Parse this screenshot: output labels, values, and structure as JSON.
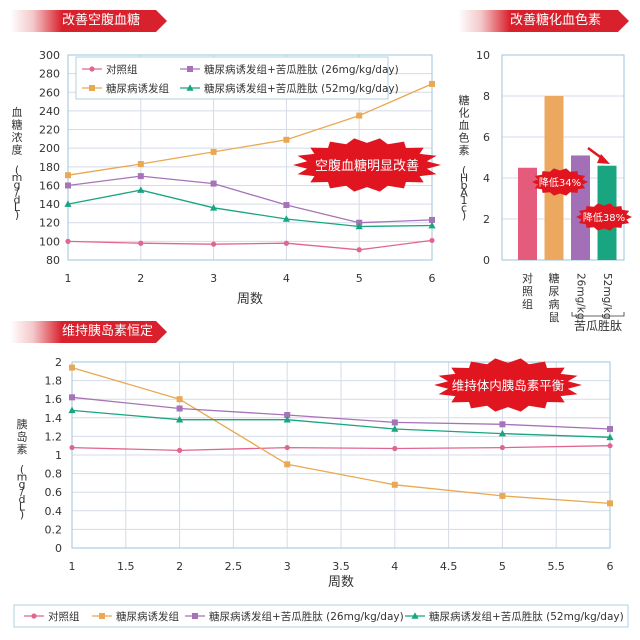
{
  "banners": {
    "fasting": "改善空腹血糖",
    "hba1c": "改善糖化血色素",
    "insulin": "维持胰岛素恒定"
  },
  "colors": {
    "control": "#e06690",
    "diabetic": "#e9a851",
    "low_dose": "#a673b8",
    "high_dose": "#19a57f",
    "grid": "#d5dbe8",
    "frame": "#9cc6dc",
    "axis_text": "#333333",
    "bar_control": "#e45b7c",
    "bar_diabetic": "#eda860",
    "bar_low": "#a36fb6",
    "bar_high": "#19a57f",
    "burst": "#e01520"
  },
  "legend_labels": {
    "control": "对照组",
    "diabetic": "糖尿病诱发组",
    "low_dose": "糖尿病诱发组+苦瓜胜肽 (26mg/kg/day)",
    "high_dose": "糖尿病诱发组+苦瓜胜肽 (52mg/kg/day)"
  },
  "callouts": {
    "fasting": "空腹血糖明显改善",
    "insulin": "维持体内胰岛素平衡",
    "reduce34": "降低34%",
    "reduce38": "降低38%"
  },
  "chart_data": [
    {
      "type": "line",
      "title": "改善空腹血糖",
      "xlabel": "周数",
      "ylabel": "血糖浓度 (mg/dL)",
      "x": [
        1,
        2,
        3,
        4,
        5,
        6
      ],
      "xlim": [
        1,
        6
      ],
      "ylim": [
        80,
        300
      ],
      "yticks": [
        80,
        100,
        120,
        140,
        160,
        180,
        200,
        220,
        240,
        260,
        280,
        300
      ],
      "grid": true,
      "legend_position": "top-left",
      "series": [
        {
          "key": "control",
          "name": "对照组",
          "marker": "circle",
          "values": [
            100,
            98,
            97,
            98,
            91,
            101
          ]
        },
        {
          "key": "diabetic",
          "name": "糖尿病诱发组",
          "marker": "square",
          "values": [
            171,
            183,
            196,
            209,
            235,
            269
          ]
        },
        {
          "key": "low_dose",
          "name": "糖尿病诱发组+苦瓜胜肽 (26mg/kg/day)",
          "marker": "square",
          "values": [
            160,
            170,
            162,
            139,
            120,
            123
          ]
        },
        {
          "key": "high_dose",
          "name": "糖尿病诱发组+苦瓜胜肽 (52mg/kg/day)",
          "marker": "triangle",
          "values": [
            140,
            155,
            136,
            124,
            116,
            117
          ]
        }
      ]
    },
    {
      "type": "bar",
      "title": "改善糖化血色素",
      "ylabel": "糖化血色素 (HbA1c)",
      "categories": [
        "对照组",
        "糖尿病鼠",
        "26mg/kg",
        "52mg/kg"
      ],
      "group_label": "苦瓜胜肽",
      "values": [
        4.5,
        8.0,
        5.1,
        4.6
      ],
      "ylim": [
        0,
        10
      ],
      "yticks": [
        0,
        2,
        4,
        6,
        8,
        10
      ],
      "grid": true
    },
    {
      "type": "line",
      "title": "维持胰岛素恒定",
      "xlabel": "周数",
      "ylabel": "胰岛素 (mg/dL)",
      "x": [
        1,
        2,
        3,
        4,
        5,
        6
      ],
      "xlim": [
        1,
        6
      ],
      "xticks": [
        1,
        1.5,
        2,
        2.5,
        3,
        3.5,
        4,
        4.5,
        5,
        5.5,
        6
      ],
      "ylim": [
        0,
        2
      ],
      "yticks": [
        0,
        0.2,
        0.4,
        0.6,
        0.8,
        1,
        1.2,
        1.4,
        1.6,
        1.8,
        2
      ],
      "grid": true,
      "legend_position": "bottom",
      "series": [
        {
          "key": "control",
          "name": "对照组",
          "marker": "circle",
          "values": [
            1.08,
            1.05,
            1.08,
            1.07,
            1.08,
            1.1
          ]
        },
        {
          "key": "diabetic",
          "name": "糖尿病诱发组",
          "marker": "square",
          "values": [
            1.94,
            1.6,
            0.9,
            0.68,
            0.56,
            0.48
          ]
        },
        {
          "key": "low_dose",
          "name": "糖尿病诱发组+苦瓜胜肽 (26mg/kg/day)",
          "marker": "square",
          "values": [
            1.62,
            1.5,
            1.43,
            1.35,
            1.33,
            1.28
          ]
        },
        {
          "key": "high_dose",
          "name": "糖尿病诱发组+苦瓜胜肽 (52mg/kg/day)",
          "marker": "triangle",
          "values": [
            1.48,
            1.38,
            1.38,
            1.28,
            1.23,
            1.19
          ]
        }
      ]
    }
  ]
}
